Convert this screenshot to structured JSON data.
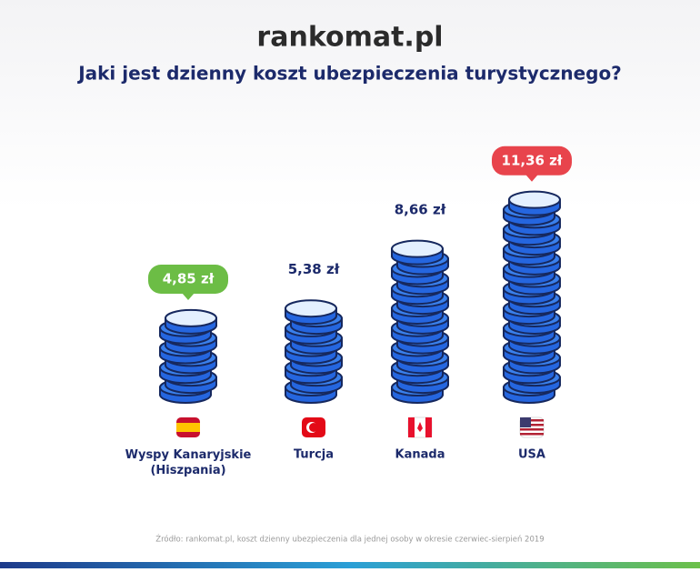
{
  "chart_data": {
    "type": "bar",
    "brand": "rankomat.pl",
    "title": "Jaki jest dzienny koszt ubezpieczenia turystycznego?",
    "categories": [
      "Wyspy Kanaryjskie (Hiszpania)",
      "Turcja",
      "Kanada",
      "USA"
    ],
    "values": [
      4.85,
      5.38,
      8.66,
      11.36
    ],
    "value_labels": [
      "4,85 zł",
      "5,38 zł",
      "8,66 zł",
      "11,36 zł"
    ],
    "label_backgrounds": [
      "#6cbd45",
      null,
      null,
      "#e8444c"
    ],
    "color": "#2566df",
    "source": "Źródło: rankomat.pl, koszt dzienny ubezpieczenia dla jednej osoby w okresie czerwiec-sierpień 2019"
  }
}
